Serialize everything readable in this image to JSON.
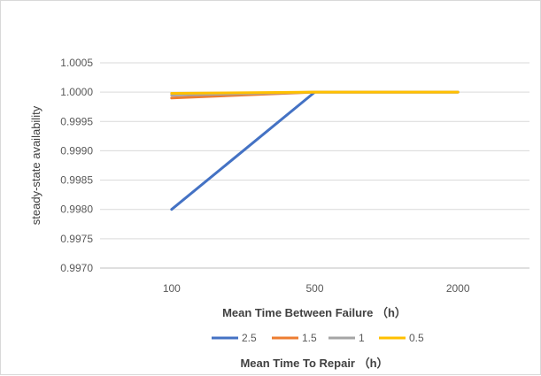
{
  "chart_data": {
    "type": "line",
    "categories": [
      "100",
      "500",
      "2000"
    ],
    "series": [
      {
        "name": "2.5",
        "color": "#4472c4",
        "values": [
          0.998,
          1.0,
          1.0
        ]
      },
      {
        "name": "1.5",
        "color": "#ed7d31",
        "values": [
          0.9999,
          1.0,
          1.0
        ]
      },
      {
        "name": "1",
        "color": "#a5a5a5",
        "values": [
          0.99995,
          1.0,
          1.0
        ]
      },
      {
        "name": "0.5",
        "color": "#ffc000",
        "values": [
          0.99998,
          1.0,
          1.0
        ]
      }
    ],
    "xlabel": "Mean Time Between Failure （h）",
    "ylabel": "steady-state availability",
    "legend_title": "Mean Time To Repair （h）",
    "ylim": [
      0.997,
      1.0005
    ],
    "yticks": [
      "0.9970",
      "0.9975",
      "0.9980",
      "0.9985",
      "0.9990",
      "0.9995",
      "1.0000",
      "1.0005"
    ],
    "grid": true,
    "legend_position": "bottom"
  }
}
